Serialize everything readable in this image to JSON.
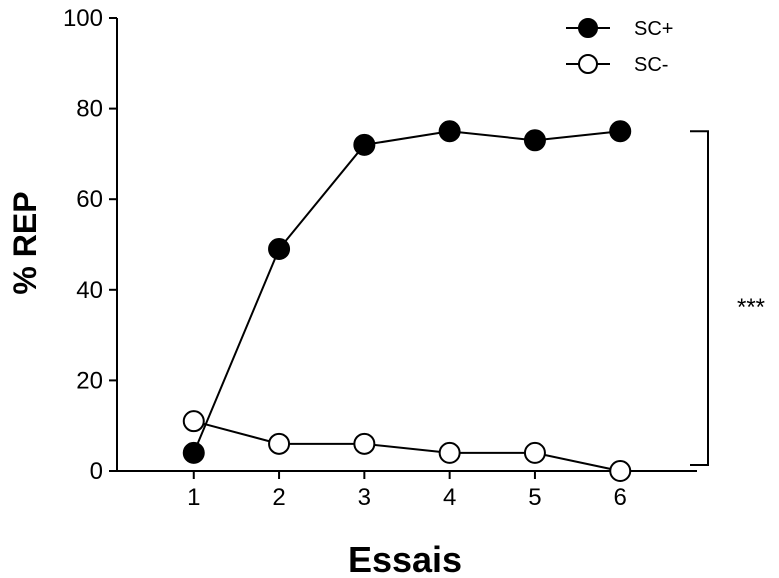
{
  "chart_data": {
    "type": "line",
    "xlabel": "Essais",
    "ylabel": "% REP",
    "x": [
      1,
      2,
      3,
      4,
      5,
      6
    ],
    "xlim": [
      0.1,
      6.9
    ],
    "ylim": [
      0,
      100
    ],
    "yticks": [
      0,
      20,
      40,
      60,
      80,
      100
    ],
    "series": [
      {
        "name": "SC+",
        "marker": "filled-circle",
        "color": "#000000",
        "values": [
          4,
          49,
          72,
          75,
          73,
          75
        ]
      },
      {
        "name": "SC-",
        "marker": "open-circle",
        "color": "#000000",
        "values": [
          11,
          6,
          6,
          4,
          4,
          0
        ]
      }
    ],
    "legend": {
      "placement": "top-right"
    },
    "annotation": {
      "text": "***",
      "type": "significance-bracket",
      "from": 0,
      "to": 75
    },
    "grid": false
  }
}
